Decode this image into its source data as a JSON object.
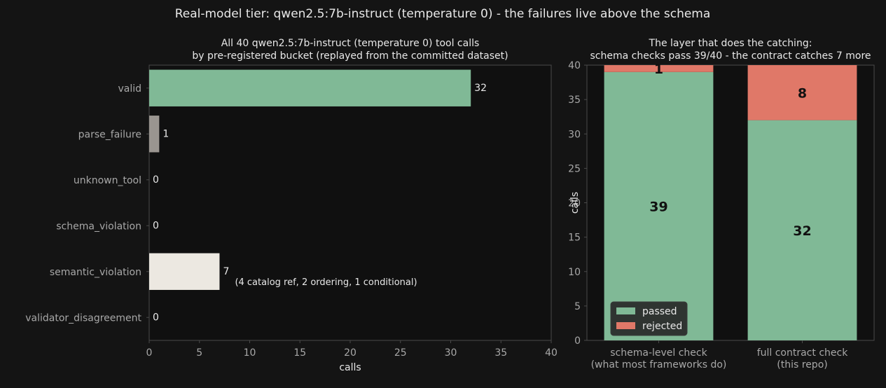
{
  "suptitle": "Real-model tier: qwen2.5:7b-instruct (temperature 0) - the failures live above the schema",
  "colors": {
    "background": "#141414",
    "axes_background": "#101010",
    "spine": "#4a4a4a",
    "text": "#e8e8e8",
    "tick_label": "#a8a8a8",
    "passed": "#80b996",
    "rejected": "#e07868",
    "parse_failure": "#9a9590",
    "semantic_violation": "#ece8e1"
  },
  "chart_data": [
    {
      "type": "bar",
      "orientation": "horizontal",
      "title_lines": [
        "All 40 qwen2.5:7b-instruct (temperature 0) tool calls",
        "by pre-registered bucket (replayed from the committed dataset)"
      ],
      "xlabel": "calls",
      "xlim": [
        0,
        40
      ],
      "xticks": [
        0,
        5,
        10,
        15,
        20,
        25,
        30,
        35,
        40
      ],
      "categories": [
        "valid",
        "parse_failure",
        "unknown_tool",
        "schema_violation",
        "semantic_violation",
        "validator_disagreement"
      ],
      "values": [
        32,
        1,
        0,
        0,
        7,
        0
      ],
      "value_labels": [
        "32",
        "1",
        "0",
        "0",
        "7",
        "0"
      ],
      "bar_colors": [
        "#80b996",
        "#9a9590",
        "#80b996",
        "#80b996",
        "#ece8e1",
        "#80b996"
      ],
      "annotation": {
        "category": "semantic_violation",
        "text": "(4 catalog ref, 2 ordering, 1 conditional)"
      },
      "grid": false
    },
    {
      "type": "bar",
      "stacked": true,
      "title_lines": [
        "The layer that does the catching:",
        "schema checks pass 39/40 - the contract catches 7 more"
      ],
      "ylabel": "calls",
      "ylim": [
        0,
        40
      ],
      "yticks": [
        0,
        5,
        10,
        15,
        20,
        25,
        30,
        35,
        40
      ],
      "categories": [
        [
          "schema-level check",
          "(what most frameworks do)"
        ],
        [
          "full contract check",
          "(this repo)"
        ]
      ],
      "series": [
        {
          "name": "passed",
          "values": [
            39,
            32
          ],
          "labels": [
            "39",
            "32"
          ]
        },
        {
          "name": "rejected",
          "values": [
            1,
            8
          ],
          "labels": [
            "1",
            "8"
          ]
        }
      ],
      "legend_position": "lower-left",
      "grid": false
    }
  ]
}
